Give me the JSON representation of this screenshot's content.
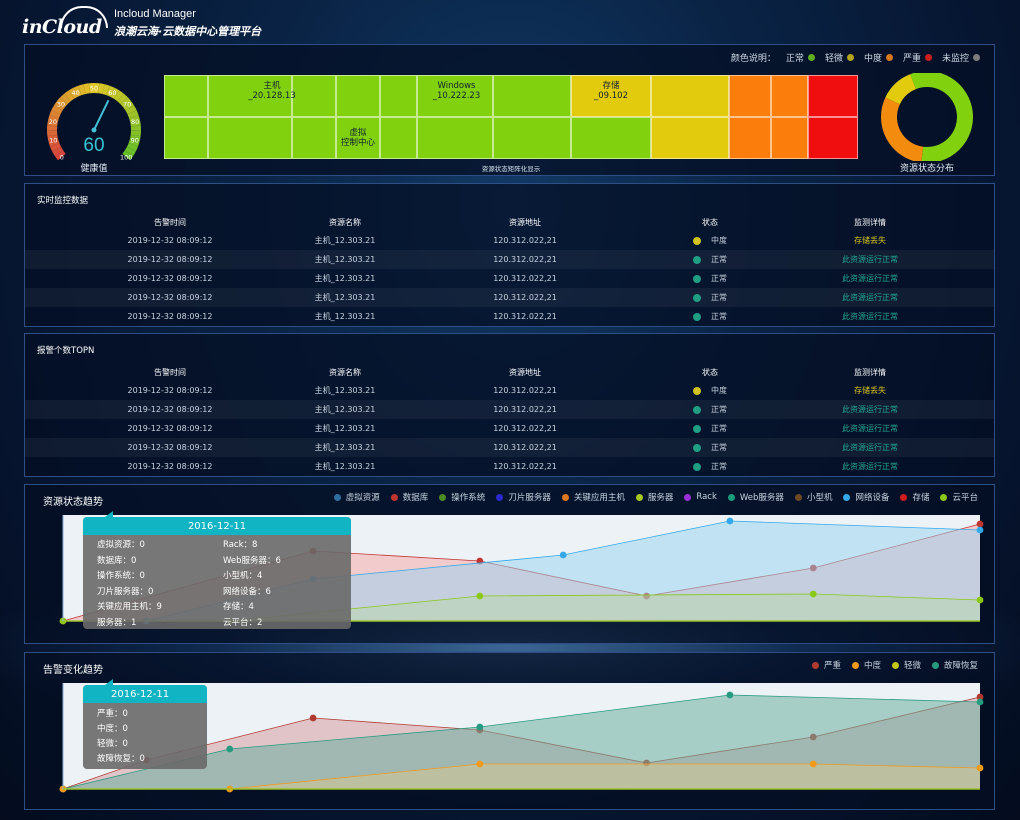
{
  "header": {
    "logo_text": "inCloud",
    "title": "Incloud Manager",
    "subtitle": "浪潮云海·云数据中心管理平台"
  },
  "overview": {
    "color_legend_label": "颜色说明：",
    "color_legend": [
      {
        "label": "正常",
        "color": "#5fae1c"
      },
      {
        "label": "轻微",
        "color": "#b5a51d"
      },
      {
        "label": "中度",
        "color": "#d9771c"
      },
      {
        "label": "严重",
        "color": "#cc1e1e"
      },
      {
        "label": "未监控",
        "color": "#7c7c7c"
      }
    ],
    "gauge": {
      "value": "60",
      "label": "健康值",
      "ticks": [
        "0",
        "10",
        "20",
        "30",
        "40",
        "50",
        "60",
        "70",
        "80",
        "90",
        "100"
      ]
    },
    "matrix": {
      "caption": "资源状态矩阵化显示",
      "labels": [
        {
          "text": "主机\n_20.128.13"
        },
        {
          "text": "Windows\n_10.222.23"
        },
        {
          "text": "存储\n_09.102"
        },
        {
          "text": "虚拟\n控制中心"
        }
      ],
      "colors": {
        "green": "#82d10f",
        "yellow": "#e2cb0c",
        "orange": "#fb7d0b",
        "red": "#f00e0e"
      }
    },
    "donut": {
      "label": "资源状态分布",
      "slices": [
        {
          "status": "正常",
          "value": 58,
          "color": "#82d10f"
        },
        {
          "status": "中度",
          "value": 30,
          "color": "#f28b0e"
        },
        {
          "status": "轻微",
          "value": 12,
          "color": "#e2cb0c"
        }
      ]
    }
  },
  "realtime": {
    "title": "实时监控数据",
    "headers": [
      "告警时间",
      "资源名称",
      "资源地址",
      "状态",
      "监测详情"
    ],
    "rows": [
      {
        "time": "2019-12-32  08:09:12",
        "name": "主机_12.303.21",
        "addr": "120.312.022,21",
        "status": "中度",
        "status_color": "#d3c21c",
        "detail": "存储丢失",
        "detail_color": "#d8c31e"
      },
      {
        "time": "2019-12-32  08:09:12",
        "name": "主机_12.303.21",
        "addr": "120.312.022,21",
        "status": "正常",
        "status_color": "#1f9e84",
        "detail": "此资源运行正常",
        "detail_color": "#22a891"
      },
      {
        "time": "2019-12-32  08:09:12",
        "name": "主机_12.303.21",
        "addr": "120.312.022,21",
        "status": "正常",
        "status_color": "#1f9e84",
        "detail": "此资源运行正常",
        "detail_color": "#22a891"
      },
      {
        "time": "2019-12-32  08:09:12",
        "name": "主机_12.303.21",
        "addr": "120.312.022,21",
        "status": "正常",
        "status_color": "#1f9e84",
        "detail": "此资源运行正常",
        "detail_color": "#22a891"
      },
      {
        "time": "2019-12-32  08:09:12",
        "name": "主机_12.303.21",
        "addr": "120.312.022,21",
        "status": "正常",
        "status_color": "#1f9e84",
        "detail": "此资源运行正常",
        "detail_color": "#22a891"
      }
    ]
  },
  "topn": {
    "title": "报警个数TOPN",
    "headers": [
      "告警时间",
      "资源名称",
      "资源地址",
      "状态",
      "监测详情"
    ],
    "rows": [
      {
        "time": "2019-12-32  08:09:12",
        "name": "主机_12.303.21",
        "addr": "120.312.022,21",
        "status": "中度",
        "status_color": "#d3c21c",
        "detail": "存储丢失",
        "detail_color": "#d8c31e"
      },
      {
        "time": "2019-12-32  08:09:12",
        "name": "主机_12.303.21",
        "addr": "120.312.022,21",
        "status": "正常",
        "status_color": "#1f9e84",
        "detail": "此资源运行正常",
        "detail_color": "#22a891"
      },
      {
        "time": "2019-12-32  08:09:12",
        "name": "主机_12.303.21",
        "addr": "120.312.022,21",
        "status": "正常",
        "status_color": "#1f9e84",
        "detail": "此资源运行正常",
        "detail_color": "#22a891"
      },
      {
        "time": "2019-12-32  08:09:12",
        "name": "主机_12.303.21",
        "addr": "120.312.022,21",
        "status": "正常",
        "status_color": "#1f9e84",
        "detail": "此资源运行正常",
        "detail_color": "#22a891"
      },
      {
        "time": "2019-12-32  08:09:12",
        "name": "主机_12.303.21",
        "addr": "120.312.022,21",
        "status": "正常",
        "status_color": "#1f9e84",
        "detail": "此资源运行正常",
        "detail_color": "#22a891"
      }
    ]
  },
  "trend": {
    "title": "资源状态趋势",
    "legend": [
      {
        "name": "虚拟资源",
        "color": "#2f6e9f"
      },
      {
        "name": "数据库",
        "color": "#c23531"
      },
      {
        "name": "操作系统",
        "color": "#4c8a22"
      },
      {
        "name": "刀片服务器",
        "color": "#2a2ad0"
      },
      {
        "name": "关键应用主机",
        "color": "#e0781d"
      },
      {
        "name": "服务器",
        "color": "#a7c81f"
      },
      {
        "name": "Rack",
        "color": "#9b30d9"
      },
      {
        "name": "Web服务器",
        "color": "#189c7a"
      },
      {
        "name": "小型机",
        "color": "#6e4a22"
      },
      {
        "name": "网络设备",
        "color": "#33a9ea"
      },
      {
        "name": "存储",
        "color": "#d01c1c"
      },
      {
        "name": "云平台",
        "color": "#8bc818"
      }
    ],
    "tooltip": {
      "date": "2016-12-11",
      "items": [
        {
          "label": "虚拟资源：0"
        },
        {
          "label": "Rack：8"
        },
        {
          "label": "数据库：0"
        },
        {
          "label": "Web服务器：6"
        },
        {
          "label": "操作系统：0"
        },
        {
          "label": "小型机：4"
        },
        {
          "label": "刀片服务器：0"
        },
        {
          "label": "网络设备：6"
        },
        {
          "label": "关键应用主机：9"
        },
        {
          "label": "存储：4"
        },
        {
          "label": "服务器：1"
        },
        {
          "label": "云平台：2"
        }
      ]
    }
  },
  "alarm": {
    "title": "告警变化趋势",
    "legend": [
      {
        "name": "严重",
        "color": "#b13a30"
      },
      {
        "name": "中度",
        "color": "#f09a1b"
      },
      {
        "name": "轻微",
        "color": "#c3c816"
      },
      {
        "name": "故障恢复",
        "color": "#279b80"
      }
    ],
    "tooltip": {
      "date": "2016-12-11",
      "items": [
        {
          "label": "严重：0"
        },
        {
          "label": "中度：0"
        },
        {
          "label": "轻微：0"
        },
        {
          "label": "故障恢复：0"
        }
      ]
    }
  },
  "chart_data": [
    {
      "type": "area",
      "title": "资源状态趋势",
      "x": [
        0,
        1,
        2,
        3,
        4,
        5,
        6,
        7,
        8,
        9,
        10,
        11
      ],
      "ylim": [
        0,
        100
      ],
      "series": [
        {
          "name": "数据库",
          "color": "#c23531",
          "fill": "rgba(246,172,172,0.55)",
          "x": [
            1,
            4,
            6,
            8,
            10,
            12
          ],
          "values": [
            0,
            70,
            60,
            25,
            53,
            97
          ]
        },
        {
          "name": "网络设备",
          "color": "#33a9ea",
          "fill": "rgba(150,210,240,0.50)",
          "x": [
            2,
            4,
            7,
            9,
            12
          ],
          "values": [
            0,
            42,
            66,
            100,
            91
          ]
        },
        {
          "name": "云平台",
          "color": "#8bc818",
          "fill": "rgba(180,220,150,0.35)",
          "x": [
            1,
            3,
            6,
            10,
            12
          ],
          "values": [
            0,
            0,
            25,
            27,
            21
          ]
        }
      ]
    },
    {
      "type": "area",
      "title": "告警变化趋势",
      "ylim": [
        0,
        100
      ],
      "series": [
        {
          "name": "严重",
          "color": "#b13a30",
          "fill": "rgba(208,140,140,0.45)",
          "x": [
            1,
            2,
            4,
            6,
            8,
            10,
            12
          ],
          "values": [
            0,
            29,
            71,
            59,
            26,
            52,
            92
          ]
        },
        {
          "name": "故障恢复",
          "color": "#279b80",
          "fill": "rgba(110,175,160,0.55)",
          "x": [
            1,
            3,
            6,
            9,
            12
          ],
          "values": [
            0,
            40,
            62,
            94,
            87
          ]
        },
        {
          "name": "中度",
          "color": "#f09a1b",
          "fill": "rgba(225,200,140,0.45)",
          "x": [
            1,
            3,
            6,
            10,
            12
          ],
          "values": [
            0,
            0,
            25,
            25,
            21
          ]
        }
      ]
    }
  ]
}
